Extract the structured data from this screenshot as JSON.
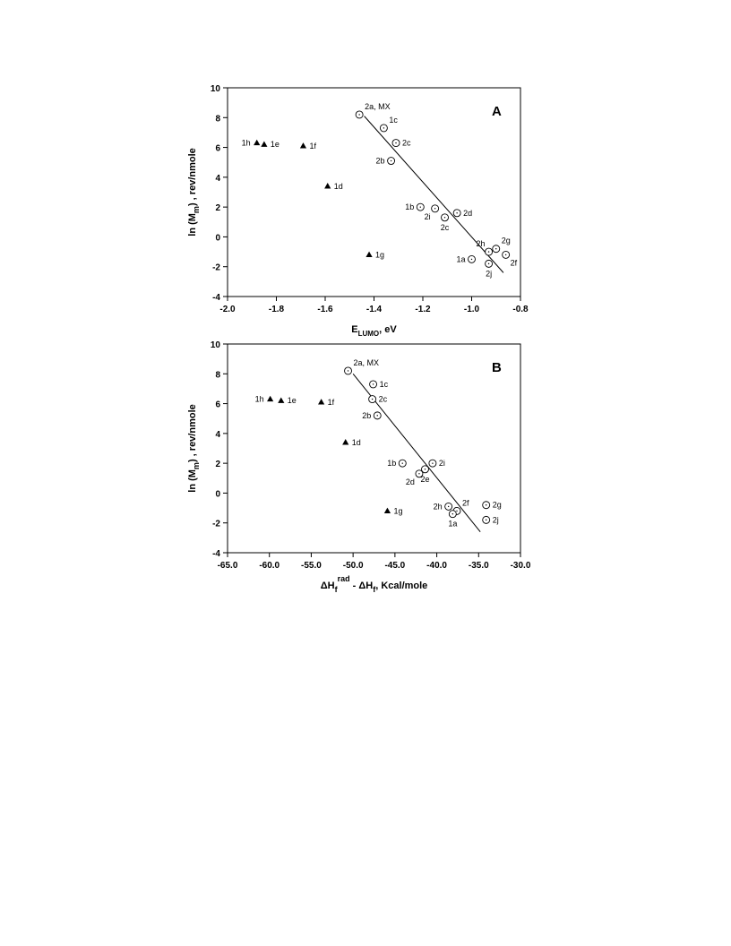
{
  "chart_data": [
    {
      "type": "scatter",
      "panel_label": "A",
      "xlabel": {
        "main": "E",
        "sub": "LUMO",
        "suffix": ", eV"
      },
      "ylabel": {
        "pre": "ln (M",
        "sub": "m",
        "post": ") , rev/nmole"
      },
      "xlim": [
        -2.0,
        -0.8
      ],
      "ylim": [
        -4,
        10
      ],
      "x_ticks": [
        -2.0,
        -1.8,
        -1.6,
        -1.4,
        -1.2,
        -1.0,
        -0.8
      ],
      "x_tick_labels": [
        "-2.0",
        "-1.8",
        "-1.6",
        "-1.4",
        "-1.2",
        "-1.0",
        "-0.8"
      ],
      "y_ticks": [
        -4,
        -2,
        0,
        2,
        4,
        6,
        8,
        10
      ],
      "y_tick_labels": [
        "-4",
        "-2",
        "0",
        "2",
        "4",
        "6",
        "8",
        "10"
      ],
      "grid": false,
      "series": [
        {
          "marker": "filled-triangle",
          "points": [
            {
              "x": -1.88,
              "y": 6.3,
              "label": "1h",
              "label_pos": "left"
            },
            {
              "x": -1.85,
              "y": 6.2,
              "label": "1e",
              "label_pos": "right"
            },
            {
              "x": -1.69,
              "y": 6.1,
              "label": "1f",
              "label_pos": "right"
            },
            {
              "x": -1.59,
              "y": 3.4,
              "label": "1d",
              "label_pos": "right"
            },
            {
              "x": -1.42,
              "y": -1.2,
              "label": "1g",
              "label_pos": "right"
            }
          ]
        },
        {
          "marker": "open-circle",
          "points": [
            {
              "x": -1.46,
              "y": 8.2,
              "label": "2a, MX",
              "label_pos": "above-right"
            },
            {
              "x": -1.36,
              "y": 7.3,
              "label": "1c",
              "label_pos": "above-right"
            },
            {
              "x": -1.31,
              "y": 6.3,
              "label": "2c",
              "label_pos": "right"
            },
            {
              "x": -1.33,
              "y": 5.1,
              "label": "2b",
              "label_pos": "left"
            },
            {
              "x": -1.21,
              "y": 2.0,
              "label": "1b",
              "label_pos": "left"
            },
            {
              "x": -1.15,
              "y": 1.9,
              "label": "2i",
              "label_pos": "below-left"
            },
            {
              "x": -1.11,
              "y": 1.3,
              "label": "2c",
              "label_pos": "below"
            },
            {
              "x": -1.06,
              "y": 1.6,
              "label": "2d",
              "label_pos": "right"
            },
            {
              "x": -0.93,
              "y": -1.0,
              "label": "2h",
              "label_pos": "above-left"
            },
            {
              "x": -0.9,
              "y": -0.8,
              "label": "2g",
              "label_pos": "above-right"
            },
            {
              "x": -0.86,
              "y": -1.2,
              "label": "2f",
              "label_pos": "below-right"
            },
            {
              "x": -1.0,
              "y": -1.5,
              "label": "1a",
              "label_pos": "left"
            },
            {
              "x": -0.93,
              "y": -1.8,
              "label": "2j",
              "label_pos": "below"
            }
          ]
        }
      ],
      "fit_line": {
        "x": [
          -1.44,
          -0.87
        ],
        "y": [
          8.1,
          -2.4
        ]
      }
    },
    {
      "type": "scatter",
      "panel_label": "B",
      "xlabel": {
        "main": "ΔH",
        "sub": "f",
        "sup": "rad",
        "suffix": " - ΔH",
        "sub2": "f",
        "suffix2": ",  Kcal/mole"
      },
      "ylabel": {
        "pre": "ln (M",
        "sub": "m",
        "post": ") , rev/nmole"
      },
      "xlim": [
        -65.0,
        -30.0
      ],
      "ylim": [
        -4,
        10
      ],
      "x_ticks": [
        -65,
        -60,
        -55,
        -50,
        -45,
        -40,
        -35,
        -30
      ],
      "x_tick_labels": [
        "-65.0",
        "-60.0",
        "-55.0",
        "-50.0",
        "-45.0",
        "-40.0",
        "-35.0",
        "-30.0"
      ],
      "y_ticks": [
        -4,
        -2,
        0,
        2,
        4,
        6,
        8,
        10
      ],
      "y_tick_labels": [
        "-4",
        "-2",
        "0",
        "2",
        "4",
        "6",
        "8",
        "10"
      ],
      "grid": false,
      "series": [
        {
          "marker": "filled-triangle",
          "points": [
            {
              "x": -59.9,
              "y": 6.3,
              "label": "1h",
              "label_pos": "left"
            },
            {
              "x": -58.6,
              "y": 6.2,
              "label": "1e",
              "label_pos": "right"
            },
            {
              "x": -53.8,
              "y": 6.1,
              "label": "1f",
              "label_pos": "right"
            },
            {
              "x": -50.9,
              "y": 3.4,
              "label": "1d",
              "label_pos": "right"
            },
            {
              "x": -45.9,
              "y": -1.2,
              "label": "1g",
              "label_pos": "right"
            }
          ]
        },
        {
          "marker": "open-circle",
          "points": [
            {
              "x": -50.6,
              "y": 8.2,
              "label": "2a, MX",
              "label_pos": "above-right"
            },
            {
              "x": -47.6,
              "y": 7.3,
              "label": "1c",
              "label_pos": "right"
            },
            {
              "x": -47.7,
              "y": 6.3,
              "label": "2c",
              "label_pos": "right"
            },
            {
              "x": -47.1,
              "y": 5.2,
              "label": "2b",
              "label_pos": "left"
            },
            {
              "x": -44.1,
              "y": 2.0,
              "label": "1b",
              "label_pos": "left"
            },
            {
              "x": -40.5,
              "y": 2.0,
              "label": "2i",
              "label_pos": "right"
            },
            {
              "x": -42.1,
              "y": 1.3,
              "label": "2d",
              "label_pos": "below-left"
            },
            {
              "x": -41.4,
              "y": 1.6,
              "label": "2e",
              "label_pos": "below"
            },
            {
              "x": -38.6,
              "y": -0.9,
              "label": "2h",
              "label_pos": "left"
            },
            {
              "x": -37.6,
              "y": -1.2,
              "label": "2f",
              "label_pos": "above-right"
            },
            {
              "x": -38.1,
              "y": -1.4,
              "label": "1a",
              "label_pos": "below"
            },
            {
              "x": -34.1,
              "y": -0.8,
              "label": "2g",
              "label_pos": "right"
            },
            {
              "x": -34.1,
              "y": -1.8,
              "label": "2j",
              "label_pos": "right"
            }
          ]
        }
      ],
      "fit_line": {
        "x": [
          -50.0,
          -34.8
        ],
        "y": [
          8.0,
          -2.6
        ]
      }
    }
  ]
}
